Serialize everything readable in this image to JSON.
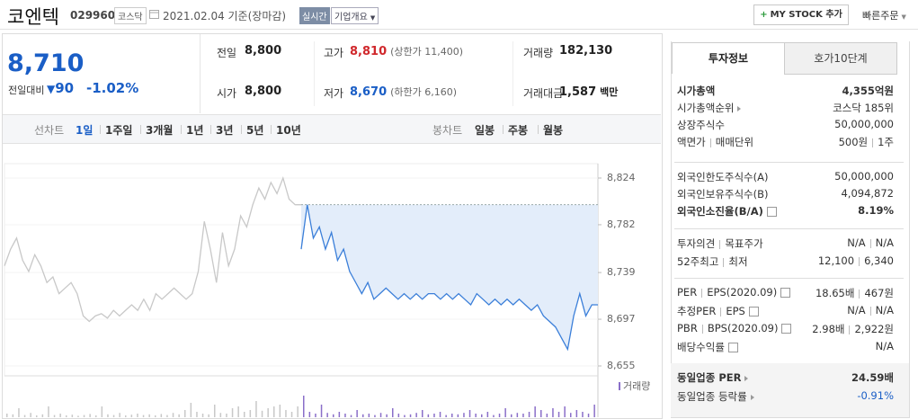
{
  "header": {
    "name": "코엔텍",
    "code": "029960",
    "market": "코스닥",
    "date": "2021.02.04 기준(장마감)",
    "realtime": "실시간",
    "company_info": "기업개요",
    "mystock": "MY STOCK 추가",
    "quick_order": "빠른주문"
  },
  "price": {
    "current": "8,710",
    "change_label": "전일대비",
    "change": "90",
    "change_pct": "-1.02%"
  },
  "summary": {
    "rows": [
      [
        {
          "label": "전일",
          "value": "8,800"
        },
        {
          "label": "고가",
          "value": "8,810",
          "extra": "(상한가 11,400)",
          "color": "#d0282c"
        },
        {
          "label": "거래량",
          "value": "182,130"
        }
      ],
      [
        {
          "label": "시가",
          "value": "8,800"
        },
        {
          "label": "저가",
          "value": "8,670",
          "extra": "(하한가 6,160)",
          "color": "#1a5ec6"
        },
        {
          "label": "거래대금",
          "value": "1,587",
          "unit": "백만"
        }
      ]
    ]
  },
  "chart_tabs": {
    "line_label": "선차트",
    "periods": [
      "1일",
      "1주일",
      "3개월",
      "1년",
      "3년",
      "5년",
      "10년"
    ],
    "candle_label": "봉차트",
    "candles": [
      "일봉",
      "주봉",
      "월봉"
    ]
  },
  "chart_data": {
    "type": "line",
    "series": [
      {
        "color": "#c8c8c8",
        "values": [
          8745,
          8760,
          8770,
          8750,
          8740,
          8755,
          8745,
          8730,
          8735,
          8720,
          8725,
          8730,
          8720,
          8700,
          8695,
          8700,
          8702,
          8698,
          8705,
          8700,
          8705,
          8710,
          8705,
          8715,
          8705,
          8720,
          8715,
          8720,
          8725,
          8720,
          8715,
          8720,
          8740,
          8785,
          8760,
          8730,
          8775,
          8745,
          8760,
          8790,
          8780,
          8800,
          8815,
          8805,
          8820,
          8810,
          8824,
          8805,
          8800,
          8800
        ]
      },
      {
        "color": "#3b7fd9",
        "fill": "#e3edfa",
        "values": [
          8760,
          8800,
          8770,
          8780,
          8760,
          8775,
          8750,
          8760,
          8740,
          8730,
          8720,
          8730,
          8715,
          8720,
          8725,
          8720,
          8715,
          8720,
          8715,
          8720,
          8715,
          8720,
          8720,
          8715,
          8720,
          8715,
          8720,
          8715,
          8710,
          8720,
          8715,
          8710,
          8715,
          8710,
          8715,
          8710,
          8715,
          8710,
          8705,
          8710,
          8700,
          8695,
          8690,
          8680,
          8670,
          8700,
          8720,
          8700,
          8710,
          8710
        ]
      }
    ],
    "reference": 8800,
    "ylim": [
      8655,
      8824
    ],
    "yticks": [
      {
        "value": 8824,
        "label": "8,824"
      },
      {
        "value": 8782,
        "label": "8,782"
      },
      {
        "value": 8739,
        "label": "8,739"
      },
      {
        "value": 8697,
        "label": "8,697"
      },
      {
        "value": 8655,
        "label": "8,655"
      }
    ],
    "volume": {
      "label": "거래량",
      "color": "#8a6fc9",
      "prev_color": "#c8c8c8",
      "ylim": [
        0,
        100
      ],
      "values": [
        10,
        8,
        25,
        6,
        12,
        5,
        8,
        30,
        6,
        10,
        5,
        7,
        4,
        6,
        9,
        5,
        30,
        8,
        6,
        12,
        5,
        7,
        10,
        6,
        8,
        5,
        9,
        6,
        12,
        8,
        20,
        40,
        15,
        10,
        8,
        35,
        12,
        10,
        25,
        30,
        15,
        20,
        45,
        18,
        25,
        30,
        35,
        20,
        15,
        30,
        60,
        15,
        10,
        35,
        12,
        8,
        15,
        10,
        6,
        20,
        8,
        10,
        6,
        12,
        8,
        25,
        10,
        6,
        8,
        12,
        20,
        8,
        10,
        15,
        6,
        10,
        8,
        12,
        20,
        10,
        8,
        15,
        6,
        10,
        25,
        8,
        12,
        10,
        15,
        30,
        20,
        10,
        25,
        15,
        30,
        12,
        20,
        15,
        10,
        35
      ]
    }
  },
  "invest": {
    "tabs": [
      "투자정보",
      "호가10단계"
    ],
    "sections": [
      [
        {
          "label": [
            "시가총액"
          ],
          "value": [
            "4,355억원"
          ],
          "bold": true
        },
        {
          "label": [
            "시가총액순위"
          ],
          "value": [
            "코스닥 185위"
          ],
          "link": true
        },
        {
          "label": [
            "상장주식수"
          ],
          "value": [
            "50,000,000"
          ]
        },
        {
          "label": [
            "액면가",
            "매매단위"
          ],
          "value": [
            "500원",
            "1주"
          ]
        }
      ],
      [
        {
          "label": [
            "외국인한도주식수(A)"
          ],
          "value": [
            "50,000,000"
          ]
        },
        {
          "label": [
            "외국인보유주식수(B)"
          ],
          "value": [
            "4,094,872"
          ]
        },
        {
          "label": [
            "외국인소진율(B/A)"
          ],
          "value": [
            "8.19%"
          ],
          "bold": true,
          "help": true
        }
      ],
      [
        {
          "label": [
            "투자의견",
            "목표주가"
          ],
          "value": [
            "N/A",
            "N/A"
          ]
        },
        {
          "label": [
            "52주최고",
            "최저"
          ],
          "value": [
            "12,100",
            "6,340"
          ]
        }
      ],
      [
        {
          "label": [
            "PER",
            "EPS(2020.09)"
          ],
          "value": [
            "18.65배",
            "467원"
          ],
          "help": true
        },
        {
          "label": [
            "추정PER",
            "EPS"
          ],
          "value": [
            "N/A",
            "N/A"
          ],
          "help": true
        },
        {
          "label": [
            "PBR",
            "BPS(2020.09)"
          ],
          "value": [
            "2.98배",
            "2,922원"
          ],
          "help": true
        },
        {
          "label": [
            "배당수익률"
          ],
          "value": [
            "N/A"
          ],
          "help": true
        }
      ],
      [
        {
          "label": [
            "동일업종 PER"
          ],
          "value": [
            "24.59배"
          ],
          "bold": true,
          "link": true
        },
        {
          "label": [
            "동일업종 등락률"
          ],
          "value": [
            "-0.91%"
          ],
          "link": true,
          "color": "#1a5ec6"
        }
      ]
    ]
  }
}
